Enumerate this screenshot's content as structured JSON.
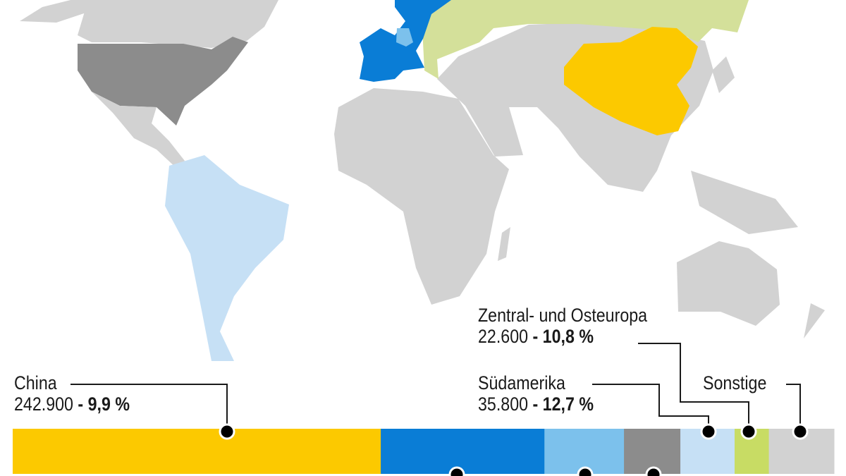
{
  "colors": {
    "background": "#ffffff",
    "land_other": "#d2d2d2",
    "usa": "#8c8c8c",
    "south_america": "#c6e0f5",
    "western_europe": "#0a7dd6",
    "germany": "#7cc1ec",
    "central_eastern_europe": "#d4e09a",
    "china": "#fcc900",
    "leader_line": "#1a1a1a"
  },
  "chart_data": {
    "type": "bar",
    "orientation": "horizontal-stacked",
    "segments": [
      {
        "name": "China",
        "value": 242900,
        "change": "- 9,9 %",
        "value_label": "242.900",
        "color": "#fcc900"
      },
      {
        "name": "",
        "value": 108000,
        "color": "#0a7dd6"
      },
      {
        "name": "",
        "value": 52500,
        "color": "#7cc1ec"
      },
      {
        "name": "",
        "value": 37200,
        "color": "#8c8c8c"
      },
      {
        "name": "Südamerika",
        "value": 35800,
        "change": "- 12,7 %",
        "value_label": "35.800",
        "color": "#c6e0f5"
      },
      {
        "name": "Zentral- und Osteuropa",
        "value": 22600,
        "change": "- 10,8 %",
        "value_label": "22.600",
        "color": "#c8dc64"
      },
      {
        "name": "Sonstige",
        "value": 43000,
        "color": "#d2d2d2"
      }
    ]
  },
  "labels": {
    "china": {
      "name": "China",
      "value": "242.900",
      "change": "- 9,9 %"
    },
    "suedamerika": {
      "name": "Südamerika",
      "value": "35.800",
      "change": "- 12,7 %"
    },
    "osteuropa": {
      "name": "Zentral- und Osteuropa",
      "value": "22.600",
      "change": "- 10,8 %"
    },
    "sonstige": {
      "name": "Sonstige"
    }
  }
}
